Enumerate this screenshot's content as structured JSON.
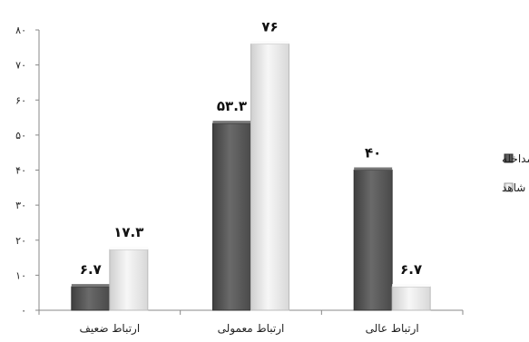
{
  "chart_data": {
    "type": "bar",
    "categories": [
      "ارتباط ضعيف",
      "ارتباط معمولی",
      "ارتباط عالی"
    ],
    "series": [
      {
        "name": "مداخله",
        "values": [
          6.7,
          53.3,
          40
        ],
        "labels": [
          "۶.۷",
          "۵۳.۳",
          "۴۰"
        ],
        "color": "#5a5a5a"
      },
      {
        "name": "شاهد",
        "values": [
          17.3,
          76,
          6.7
        ],
        "labels": [
          "۱۷.۳",
          "۷۶",
          "۶.۷"
        ],
        "color": "#e6e6e6"
      }
    ],
    "yticks": [
      0,
      10,
      20,
      30,
      40,
      50,
      60,
      70,
      80
    ],
    "ytick_labels": [
      "۰",
      "۱۰",
      "۲۰",
      "۳۰",
      "۴۰",
      "۵۰",
      "۶۰",
      "۷۰",
      "۸۰"
    ],
    "ylim": [
      0,
      80
    ],
    "title": "",
    "xlabel": "",
    "ylabel": "",
    "grid": false,
    "legend_position": "right"
  }
}
